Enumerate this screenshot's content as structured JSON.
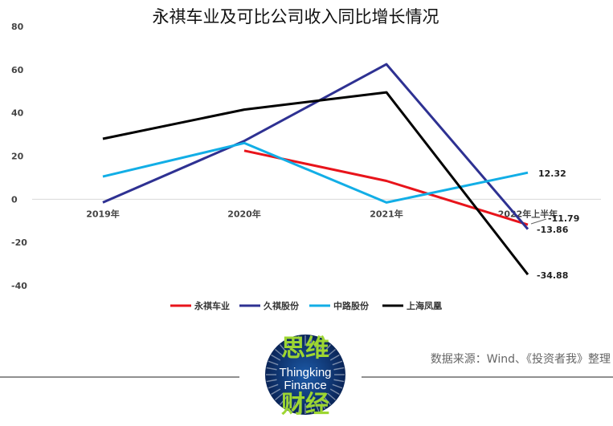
{
  "chart_data": {
    "type": "line",
    "title": "永祺车业及可比公司收入同比增长情况",
    "categories": [
      "2019年",
      "2020年",
      "2021年",
      "2022年上半年"
    ],
    "yticks": [
      "80",
      "60",
      "40",
      "20",
      "0",
      "-20",
      "-40"
    ],
    "ylim": [
      -45,
      80
    ],
    "grid": false,
    "legend_position": "bottom",
    "series": [
      {
        "name": "永祺车业",
        "color": "#e8141b",
        "values": [
          null,
          22.5,
          8.5,
          -11.79
        ],
        "end_label": "-11.79"
      },
      {
        "name": "久祺股份",
        "color": "#2e3192",
        "values": [
          -1.5,
          27.0,
          62.5,
          -13.86
        ],
        "end_label": "-13.86"
      },
      {
        "name": "中路股份",
        "color": "#12aee6",
        "values": [
          10.5,
          26.0,
          -1.5,
          12.32
        ],
        "end_label": "12.32"
      },
      {
        "name": "上海凤凰",
        "color": "#000000",
        "values": [
          28.0,
          41.5,
          49.5,
          -34.88
        ],
        "end_label": "-34.88"
      }
    ]
  },
  "source": "数据来源：Wind、《投资者我》整理",
  "logo": {
    "top": "思维",
    "line1": "Thingking",
    "line2": "Finance",
    "bottom": "财经",
    "bg_color": "#0e2f6b",
    "accent_color": "#9dd631"
  }
}
